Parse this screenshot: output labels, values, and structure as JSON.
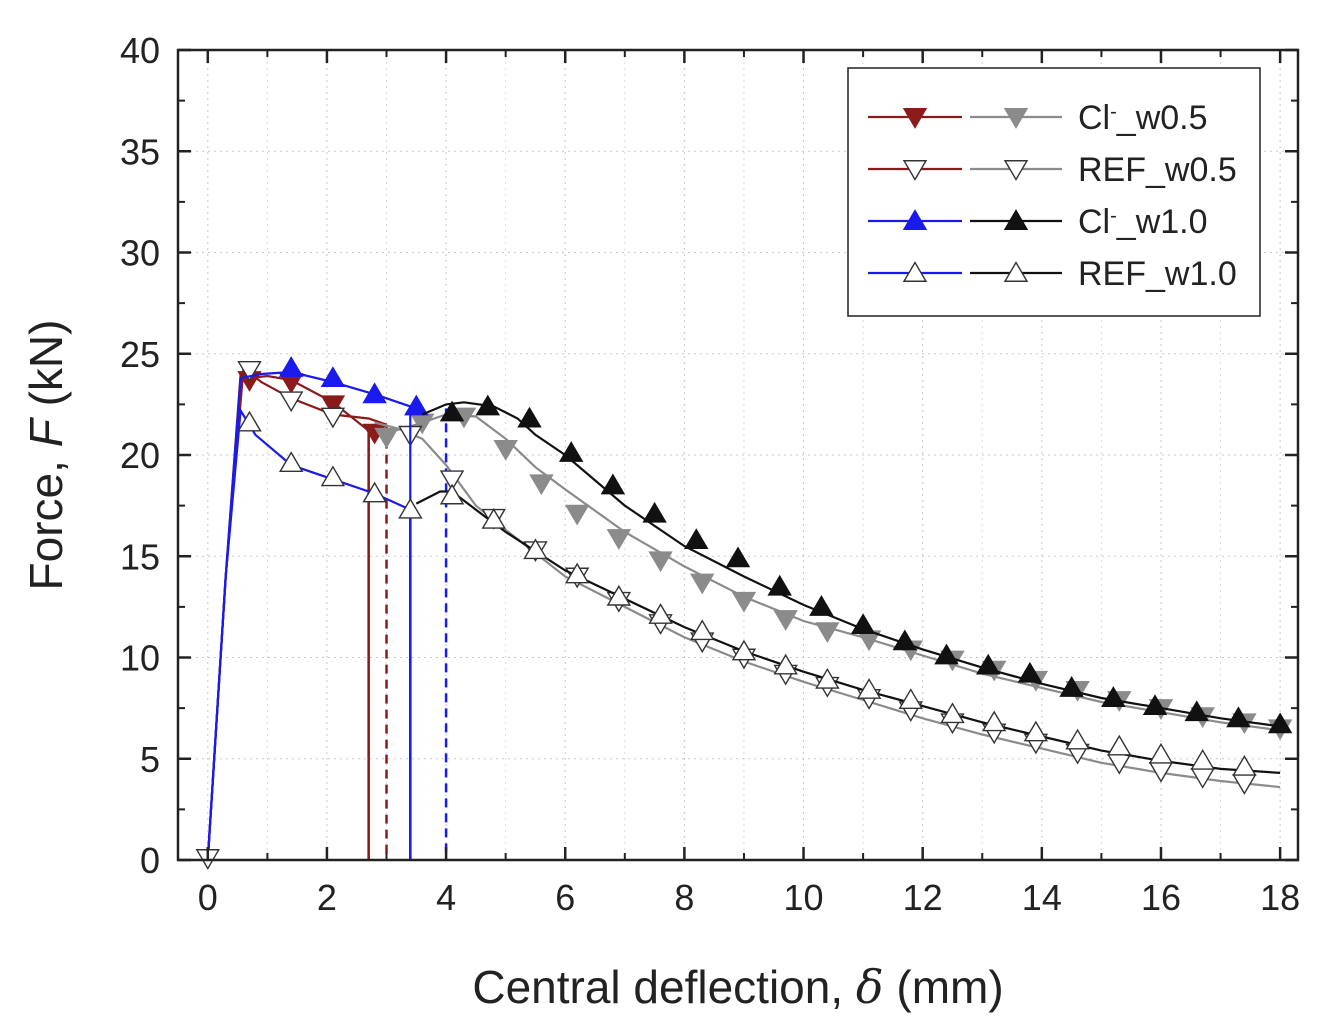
{
  "chart_data": {
    "type": "line",
    "xlabel": {
      "prefix": "Central deflection, ",
      "symbol": "δ",
      "suffix": " (mm)"
    },
    "ylabel": {
      "prefix": "Force, ",
      "symbol": "F",
      "suffix": " (kN)"
    },
    "xlim": [
      -0.5,
      18.3
    ],
    "ylim": [
      0,
      40
    ],
    "xticks": [
      "0",
      "2",
      "4",
      "6",
      "8",
      "10",
      "12",
      "14",
      "16",
      "18"
    ],
    "yticks": [
      "0",
      "5",
      "10",
      "15",
      "20",
      "25",
      "30",
      "35",
      "40"
    ],
    "grid": true,
    "legend": {
      "position": "top-right",
      "entries": [
        {
          "name_main": "Cl",
          "name_sup": "-",
          "name_rest": "_w0.5",
          "series": [
            0,
            1
          ]
        },
        {
          "name_main": "REF_w0.5",
          "name_sup": "",
          "name_rest": "",
          "series": [
            2,
            3
          ]
        },
        {
          "name_main": "Cl",
          "name_sup": "-",
          "name_rest": "_w1.0",
          "series": [
            4,
            5
          ]
        },
        {
          "name_main": "REF_w1.0",
          "name_sup": "",
          "name_rest": "",
          "series": [
            6,
            7
          ]
        }
      ]
    },
    "series": [
      {
        "color": "#8b1a1a",
        "marker": "triangle-down",
        "fill": "filled",
        "dash": "solid",
        "points": [
          [
            0,
            0
          ],
          [
            0.3,
            14
          ],
          [
            0.55,
            24
          ],
          [
            0.7,
            23.8
          ],
          [
            1.0,
            23.9
          ],
          [
            1.4,
            23.7
          ],
          [
            2.1,
            22.6
          ],
          [
            2.7,
            21.2
          ],
          [
            2.7,
            0
          ]
        ],
        "markers": [
          [
            0.7,
            23.7
          ],
          [
            1.4,
            23.6
          ],
          [
            2.1,
            22.5
          ],
          [
            2.8,
            21.1
          ]
        ]
      },
      {
        "color": "#8b8b8b",
        "marker": "triangle-down",
        "fill": "filled",
        "dash": "solid",
        "points": [
          [
            2.9,
            21.0
          ],
          [
            3.5,
            21.5
          ],
          [
            4.0,
            22.0
          ],
          [
            4.5,
            21.9
          ],
          [
            5.0,
            20.8
          ],
          [
            5.5,
            19.4
          ],
          [
            6.0,
            18.3
          ],
          [
            7.0,
            16.2
          ],
          [
            8.0,
            14.5
          ],
          [
            9.0,
            13.0
          ],
          [
            10.0,
            11.8
          ],
          [
            11.0,
            11.0
          ],
          [
            12.0,
            10.1
          ],
          [
            13.0,
            9.2
          ],
          [
            14.0,
            8.5
          ],
          [
            15.0,
            7.8
          ],
          [
            16.0,
            7.3
          ],
          [
            17.0,
            6.8
          ],
          [
            18.0,
            6.4
          ]
        ],
        "markers": [
          [
            3.0,
            20.9
          ],
          [
            3.6,
            21.6
          ],
          [
            4.3,
            21.9
          ],
          [
            5.0,
            20.3
          ],
          [
            5.6,
            18.6
          ],
          [
            6.2,
            17.1
          ],
          [
            6.9,
            15.9
          ],
          [
            7.6,
            14.8
          ],
          [
            8.3,
            13.7
          ],
          [
            9.0,
            12.8
          ],
          [
            9.7,
            11.9
          ],
          [
            10.4,
            11.3
          ],
          [
            11.1,
            10.9
          ],
          [
            11.8,
            10.4
          ],
          [
            12.5,
            9.9
          ],
          [
            13.2,
            9.4
          ],
          [
            13.9,
            8.9
          ],
          [
            14.6,
            8.4
          ],
          [
            15.3,
            7.9
          ],
          [
            16.0,
            7.5
          ],
          [
            16.7,
            7.1
          ],
          [
            17.4,
            6.8
          ],
          [
            18.0,
            6.5
          ]
        ]
      },
      {
        "color": "#8b1a1a",
        "marker": "triangle-down",
        "fill": "open",
        "dash": "solid",
        "points": [
          [
            0,
            0
          ],
          [
            0.3,
            14
          ],
          [
            0.6,
            24.3
          ],
          [
            0.9,
            23.6
          ],
          [
            1.4,
            22.8
          ],
          [
            2.1,
            22.0
          ],
          [
            2.7,
            21.8
          ],
          [
            3.0,
            21.5
          ]
        ],
        "markers": [
          [
            0.7,
            24.2
          ],
          [
            1.4,
            22.7
          ],
          [
            2.1,
            21.9
          ]
        ]
      },
      {
        "color": "#8b8b8b",
        "marker": "triangle-down",
        "fill": "open",
        "dash": "solid",
        "points": [
          [
            2.8,
            21.6
          ],
          [
            3.2,
            21.3
          ],
          [
            3.6,
            20.8
          ],
          [
            4.0,
            19.5
          ],
          [
            4.5,
            17.5
          ],
          [
            5.0,
            16.3
          ],
          [
            6.0,
            14.0
          ],
          [
            7.0,
            12.5
          ],
          [
            8.0,
            11.0
          ],
          [
            9.0,
            9.8
          ],
          [
            10.0,
            8.8
          ],
          [
            11.0,
            7.9
          ],
          [
            12.0,
            7.0
          ],
          [
            13.0,
            6.2
          ],
          [
            14.0,
            5.5
          ],
          [
            15.0,
            4.8
          ],
          [
            16.0,
            4.3
          ],
          [
            17.0,
            3.9
          ],
          [
            18.0,
            3.6
          ]
        ],
        "markers": [
          [
            3.4,
            21.0
          ],
          [
            4.1,
            18.8
          ],
          [
            4.8,
            16.9
          ],
          [
            5.5,
            15.3
          ],
          [
            6.2,
            14.0
          ],
          [
            6.9,
            12.8
          ],
          [
            7.6,
            11.7
          ],
          [
            8.3,
            10.8
          ],
          [
            9.0,
            10.0
          ],
          [
            9.7,
            9.2
          ],
          [
            10.4,
            8.6
          ],
          [
            11.1,
            8.0
          ],
          [
            11.8,
            7.4
          ],
          [
            12.5,
            6.8
          ],
          [
            13.2,
            6.3
          ],
          [
            13.9,
            5.8
          ],
          [
            14.6,
            5.3
          ],
          [
            15.3,
            4.8
          ],
          [
            16.0,
            4.4
          ],
          [
            16.7,
            4.1
          ],
          [
            17.4,
            3.8
          ]
        ]
      },
      {
        "color": "#1a1aee",
        "marker": "triangle-up",
        "fill": "filled",
        "dash": "solid",
        "points": [
          [
            0,
            0
          ],
          [
            0.3,
            14
          ],
          [
            0.55,
            23.8
          ],
          [
            0.9,
            24.0
          ],
          [
            1.4,
            24.1
          ],
          [
            2.1,
            23.6
          ],
          [
            2.8,
            23.0
          ],
          [
            3.4,
            22.4
          ],
          [
            3.4,
            0
          ]
        ],
        "markers": [
          [
            1.4,
            24.3
          ],
          [
            2.1,
            23.8
          ],
          [
            2.8,
            23.0
          ],
          [
            3.5,
            22.4
          ]
        ]
      },
      {
        "color": "#111111",
        "marker": "triangle-up",
        "fill": "filled",
        "dash": "solid",
        "points": [
          [
            3.6,
            22.0
          ],
          [
            4.0,
            22.5
          ],
          [
            4.3,
            22.6
          ],
          [
            4.8,
            22.4
          ],
          [
            5.2,
            21.8
          ],
          [
            5.5,
            21.0
          ],
          [
            6.0,
            20.0
          ],
          [
            7.0,
            17.5
          ],
          [
            8.0,
            15.5
          ],
          [
            9.0,
            14.0
          ],
          [
            10.0,
            12.6
          ],
          [
            11.0,
            11.4
          ],
          [
            12.0,
            10.4
          ],
          [
            13.0,
            9.5
          ],
          [
            14.0,
            8.7
          ],
          [
            15.0,
            8.0
          ],
          [
            16.0,
            7.5
          ],
          [
            17.0,
            7.0
          ],
          [
            18.0,
            6.6
          ]
        ],
        "markers": [
          [
            4.1,
            22.1
          ],
          [
            4.7,
            22.4
          ],
          [
            5.4,
            21.8
          ],
          [
            6.1,
            20.1
          ],
          [
            6.8,
            18.5
          ],
          [
            7.5,
            17.1
          ],
          [
            8.2,
            15.8
          ],
          [
            8.9,
            14.9
          ],
          [
            9.6,
            13.5
          ],
          [
            10.3,
            12.5
          ],
          [
            11.0,
            11.6
          ],
          [
            11.7,
            10.8
          ],
          [
            12.4,
            10.1
          ],
          [
            13.1,
            9.6
          ],
          [
            13.8,
            9.2
          ],
          [
            14.5,
            8.5
          ],
          [
            15.2,
            8.0
          ],
          [
            15.9,
            7.6
          ],
          [
            16.6,
            7.3
          ],
          [
            17.3,
            7.0
          ],
          [
            18.0,
            6.7
          ]
        ]
      },
      {
        "color": "#1a1aee",
        "marker": "triangle-up",
        "fill": "open",
        "dash": "solid",
        "points": [
          [
            0,
            0
          ],
          [
            0.3,
            14
          ],
          [
            0.55,
            22.2
          ],
          [
            0.8,
            21.0
          ],
          [
            1.4,
            19.5
          ],
          [
            2.1,
            18.8
          ],
          [
            2.8,
            18.1
          ],
          [
            3.4,
            17.3
          ],
          [
            3.4,
            0
          ]
        ],
        "markers": [
          [
            0.7,
            21.6
          ],
          [
            1.4,
            19.6
          ],
          [
            2.1,
            18.9
          ],
          [
            2.8,
            18.1
          ],
          [
            3.4,
            17.3
          ]
        ]
      },
      {
        "color": "#111111",
        "marker": "triangle-up",
        "fill": "open",
        "dash": "solid",
        "points": [
          [
            3.5,
            17.6
          ],
          [
            3.9,
            18.2
          ],
          [
            4.1,
            18.2
          ],
          [
            4.5,
            17.3
          ],
          [
            5.0,
            16.2
          ],
          [
            6.0,
            14.3
          ],
          [
            7.0,
            12.9
          ],
          [
            8.0,
            11.5
          ],
          [
            9.0,
            10.3
          ],
          [
            10.0,
            9.3
          ],
          [
            11.0,
            8.4
          ],
          [
            12.0,
            7.6
          ],
          [
            13.0,
            6.8
          ],
          [
            14.0,
            6.1
          ],
          [
            15.0,
            5.4
          ],
          [
            16.0,
            4.9
          ],
          [
            17.0,
            4.5
          ],
          [
            18.0,
            4.3
          ]
        ],
        "markers": [
          [
            4.1,
            18.0
          ],
          [
            4.8,
            16.8
          ],
          [
            5.5,
            15.3
          ],
          [
            6.2,
            14.1
          ],
          [
            6.9,
            13.0
          ],
          [
            7.6,
            12.1
          ],
          [
            8.3,
            11.3
          ],
          [
            9.0,
            10.3
          ],
          [
            9.7,
            9.6
          ],
          [
            10.4,
            8.9
          ],
          [
            11.1,
            8.4
          ],
          [
            11.8,
            7.9
          ],
          [
            12.5,
            7.2
          ],
          [
            13.2,
            6.8
          ],
          [
            13.9,
            6.3
          ],
          [
            14.6,
            5.9
          ],
          [
            15.3,
            5.6
          ],
          [
            16.0,
            5.2
          ],
          [
            16.7,
            4.9
          ],
          [
            17.4,
            4.6
          ]
        ]
      }
    ],
    "drops": [
      {
        "x": 2.7,
        "y_top": 21.2,
        "color": "#8b1a1a",
        "dash": "solid"
      },
      {
        "x": 3.0,
        "y_top": 21.5,
        "color": "#8b1a1a",
        "dash": "dashed"
      },
      {
        "x": 3.4,
        "y_top": 17.3,
        "color": "#1a1aee",
        "dash": "solid"
      },
      {
        "x": 4.0,
        "y_top": 22.3,
        "color": "#1a1aee",
        "dash": "dashed"
      }
    ]
  }
}
